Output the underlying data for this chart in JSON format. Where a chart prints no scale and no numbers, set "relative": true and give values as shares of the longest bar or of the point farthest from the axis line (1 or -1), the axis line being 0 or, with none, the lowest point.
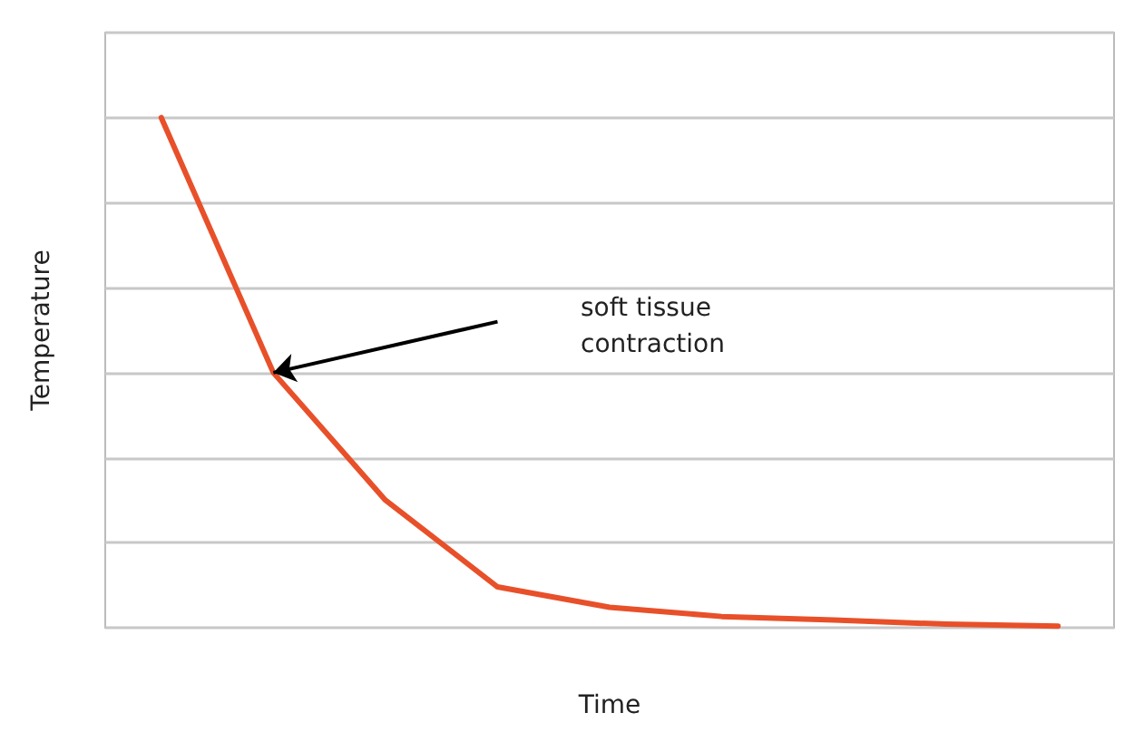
{
  "chart_data": {
    "type": "line",
    "relative": true,
    "xlabel": "Time",
    "ylabel": "Temperature",
    "categories": [
      null,
      null,
      null,
      null,
      null,
      null,
      null,
      null,
      null
    ],
    "series": [
      {
        "color": "#e8502a",
        "values": [
          1,
          0.5,
          0.25,
          0.08,
          0.04,
          0.022,
          0.015,
          0.007,
          0.003
        ]
      }
    ],
    "annotations": [
      "soft tissue\ncontraction"
    ],
    "grid": "y",
    "marker": "none",
    "line_style": "solid"
  }
}
